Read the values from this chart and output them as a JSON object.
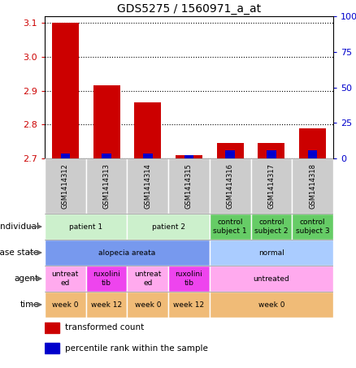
{
  "title": "GDS5275 / 1560971_a_at",
  "samples": [
    "GSM1414312",
    "GSM1414313",
    "GSM1414314",
    "GSM1414315",
    "GSM1414316",
    "GSM1414317",
    "GSM1414318"
  ],
  "transformed_count": [
    3.1,
    2.915,
    2.865,
    2.71,
    2.745,
    2.745,
    2.79
  ],
  "percentile_rank": [
    3.5,
    3.5,
    3.5,
    2.5,
    5.5,
    5.5,
    5.5
  ],
  "bar_base": 2.7,
  "ylim_left": [
    2.7,
    3.12
  ],
  "ylim_right": [
    0,
    100
  ],
  "yticks_left": [
    2.7,
    2.8,
    2.9,
    3.0,
    3.1
  ],
  "yticks_right": [
    0,
    25,
    50,
    75,
    100
  ],
  "ytick_labels_right": [
    "0",
    "25",
    "50",
    "75",
    "100%"
  ],
  "red_color": "#cc0000",
  "blue_color": "#0000cc",
  "row_labels": [
    "individual",
    "disease state",
    "agent",
    "time"
  ],
  "individual_data": {
    "spans": [
      [
        0,
        2,
        "patient 1"
      ],
      [
        2,
        4,
        "patient 2"
      ],
      [
        4,
        5,
        "control\nsubject 1"
      ],
      [
        5,
        6,
        "control\nsubject 2"
      ],
      [
        6,
        7,
        "control\nsubject 3"
      ]
    ],
    "colors": [
      "#ccf0cc",
      "#ccf0cc",
      "#66cc66",
      "#66cc66",
      "#66cc66"
    ]
  },
  "disease_state_data": {
    "spans": [
      [
        0,
        4,
        "alopecia areata"
      ],
      [
        4,
        7,
        "normal"
      ]
    ],
    "colors": [
      "#7799ee",
      "#aaccff"
    ]
  },
  "agent_data": {
    "spans": [
      [
        0,
        1,
        "untreat\ned"
      ],
      [
        1,
        2,
        "ruxolini\ntib"
      ],
      [
        2,
        3,
        "untreat\ned"
      ],
      [
        3,
        4,
        "ruxolini\ntib"
      ],
      [
        4,
        7,
        "untreated"
      ]
    ],
    "colors": [
      "#ffaaee",
      "#ee44ee",
      "#ffaaee",
      "#ee44ee",
      "#ffaaee"
    ]
  },
  "time_data": {
    "spans": [
      [
        0,
        1,
        "week 0"
      ],
      [
        1,
        2,
        "week 12"
      ],
      [
        2,
        3,
        "week 0"
      ],
      [
        3,
        4,
        "week 12"
      ],
      [
        4,
        7,
        "week 0"
      ]
    ],
    "colors": [
      "#f0bb77",
      "#f0bb77",
      "#f0bb77",
      "#f0bb77",
      "#f0bb77"
    ]
  },
  "gsm_bg_color": "#cccccc",
  "gsm_border_color": "#aaaaaa",
  "chart_bg": "#ffffff",
  "label_color": "#333333"
}
